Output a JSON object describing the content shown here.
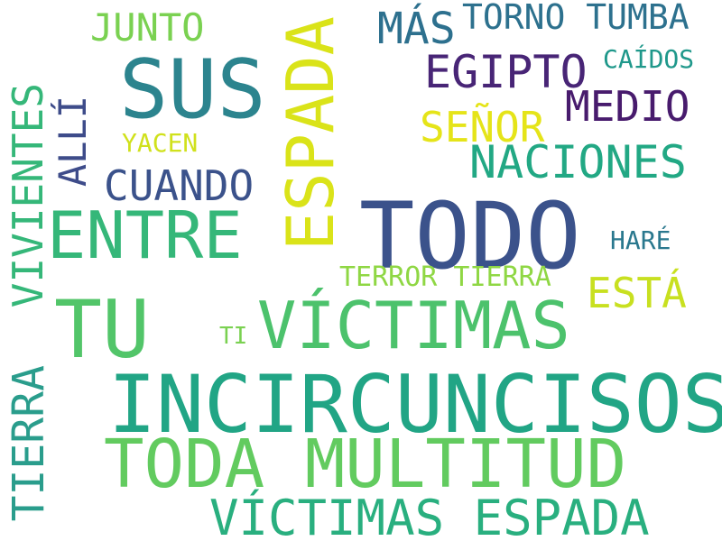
{
  "words": {
    "incircuncisos": {
      "text": "INCIRCUNCISOS",
      "color": "#21a585"
    },
    "todo": {
      "text": "TODO",
      "color": "#3b528b"
    },
    "espada_vertical": {
      "text": "ESPADA",
      "color": "#dae319"
    },
    "sus": {
      "text": "SUS",
      "color": "#2c848e"
    },
    "tu": {
      "text": "TU",
      "color": "#52c569"
    },
    "victimas": {
      "text": "VÍCTIMAS",
      "color": "#4cc26c"
    },
    "toda_multitud": {
      "text": "TODA MULTITUD",
      "color": "#62cb5f"
    },
    "entre": {
      "text": "ENTRE",
      "color": "#35b779"
    },
    "victimas_espada": {
      "text": "VÍCTIMAS ESPADA",
      "color": "#29af7f"
    },
    "vivientes_vertical": {
      "text": "VIVIENTES",
      "color": "#35b779"
    },
    "tierra_vertical": {
      "text": "TIERRA",
      "color": "#2a9d8c"
    },
    "egipto": {
      "text": "EGIPTO",
      "color": "#482576"
    },
    "naciones": {
      "text": "NACIONES",
      "color": "#22a884"
    },
    "medio": {
      "text": "MEDIO",
      "color": "#481b6d"
    },
    "cuando": {
      "text": "CUANDO",
      "color": "#3b528b"
    },
    "senor": {
      "text": "SEÑOR",
      "color": "#e5e419"
    },
    "esta": {
      "text": "ESTÁ",
      "color": "#c8e020"
    },
    "alli_vertical": {
      "text": "ALLÍ",
      "color": "#3e4c8a"
    },
    "mas": {
      "text": "MÁS",
      "color": "#2d708e"
    },
    "junto": {
      "text": "JUNTO",
      "color": "#7ad151"
    },
    "torno_tumba": {
      "text": "TORNO TUMBA",
      "color": "#2d718e"
    },
    "caidos": {
      "text": "CAÍDOS",
      "color": "#1f988b"
    },
    "terror_tierra": {
      "text": "TERROR TIERRA",
      "color": "#8fd744"
    },
    "hare": {
      "text": "HARÉ",
      "color": "#2a788e"
    },
    "yacen": {
      "text": "YACEN",
      "color": "#d0e11c"
    },
    "ti": {
      "text": "TI",
      "color": "#7ad151"
    }
  }
}
